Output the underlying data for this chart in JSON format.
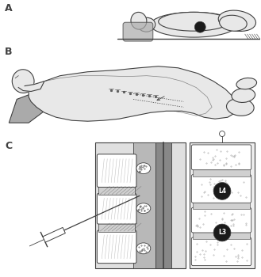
{
  "background_color": "#ffffff",
  "figure_width": 3.29,
  "figure_height": 3.5,
  "dpi": 100,
  "label_A": "A",
  "label_B": "B",
  "label_C": "C",
  "label_fontsize": 9,
  "label_fontweight": "bold",
  "lc": "#404040",
  "body_fill": "#e8e8e8",
  "light_gray": "#d0d0d0",
  "mid_gray": "#aaaaaa",
  "dark_gray": "#606060",
  "very_dark": "#1a1a1a",
  "white": "#ffffff"
}
